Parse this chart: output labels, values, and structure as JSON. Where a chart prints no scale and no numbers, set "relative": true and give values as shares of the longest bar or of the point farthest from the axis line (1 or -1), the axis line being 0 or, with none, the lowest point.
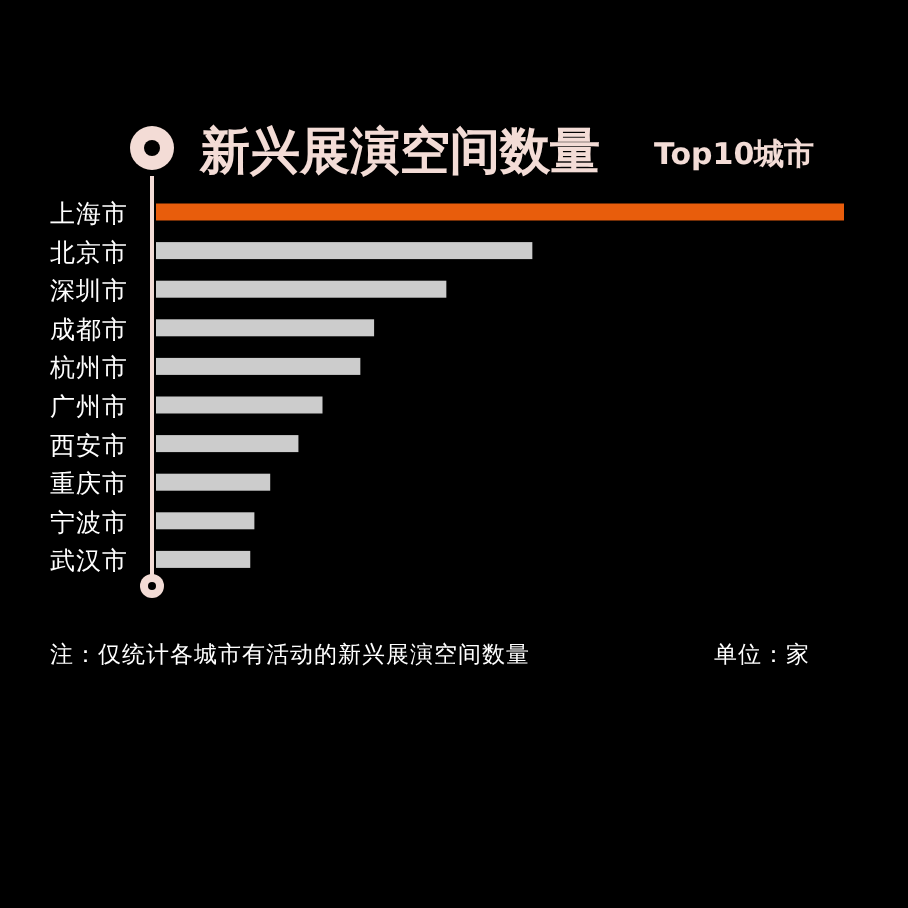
{
  "chart_data": {
    "type": "bar",
    "orientation": "horizontal",
    "relative": true,
    "title": "新兴展演空间数量",
    "subtitle": "Top10城市",
    "categories": [
      "上海市",
      "北京市",
      "深圳市",
      "成都市",
      "杭州市",
      "广州市",
      "西安市",
      "重庆市",
      "宁波市",
      "武汉市"
    ],
    "values": [
      1,
      0.547,
      0.422,
      0.317,
      0.297,
      0.242,
      0.207,
      0.166,
      0.143,
      0.137
    ],
    "colors": [
      "#e85d0c",
      "#cccccc",
      "#cccccc",
      "#cccccc",
      "#cccccc",
      "#cccccc",
      "#cccccc",
      "#cccccc",
      "#cccccc",
      "#cccccc"
    ],
    "annotations": [
      "注：仅统计各城市有活动的新兴展演空间数量",
      "单位：家"
    ]
  }
}
